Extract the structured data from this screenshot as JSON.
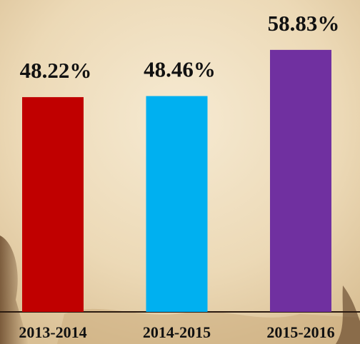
{
  "chart_data": {
    "type": "bar",
    "categories": [
      "2013-2014",
      "2014-2015",
      "2015-2016"
    ],
    "values": [
      48.22,
      48.46,
      58.83
    ],
    "value_labels": [
      "48.22%",
      "48.46%",
      "58.83%"
    ],
    "colors": [
      "#c00000",
      "#00b0f0",
      "#7030a0"
    ]
  }
}
